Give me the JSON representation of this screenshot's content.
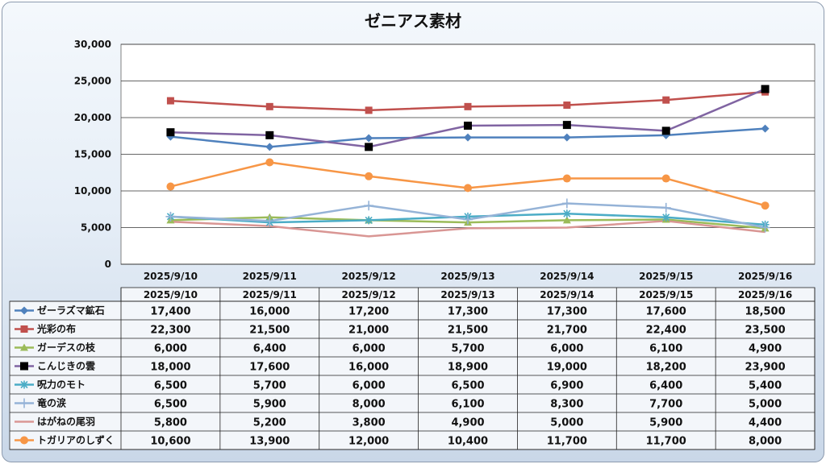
{
  "chart_data": {
    "type": "line",
    "title": "ゼニアス素材",
    "categories": [
      "2025/9/10",
      "2025/9/11",
      "2025/9/12",
      "2025/9/13",
      "2025/9/14",
      "2025/9/15",
      "2025/9/16"
    ],
    "ylim": [
      0,
      30000
    ],
    "yticks": [
      "0",
      "5,000",
      "10,000",
      "15,000",
      "20,000",
      "25,000",
      "30,000"
    ],
    "grid": true,
    "legend": "data-table",
    "series": [
      {
        "name": "ゼーラズマ鉱石",
        "color": "#4f81bd",
        "marker": "diamond",
        "values": [
          17400,
          16000,
          17200,
          17300,
          17300,
          17600,
          18500
        ],
        "labels": [
          "17,400",
          "16,000",
          "17,200",
          "17,300",
          "17,300",
          "17,600",
          "18,500"
        ]
      },
      {
        "name": "光彩の布",
        "color": "#c0504d",
        "marker": "square",
        "values": [
          22300,
          21500,
          21000,
          21500,
          21700,
          22400,
          23500
        ],
        "labels": [
          "22,300",
          "21,500",
          "21,000",
          "21,500",
          "21,700",
          "22,400",
          "23,500"
        ]
      },
      {
        "name": "ガーデスの枝",
        "color": "#9bbb59",
        "marker": "triangle",
        "values": [
          6000,
          6400,
          6000,
          5700,
          6000,
          6100,
          4900
        ],
        "labels": [
          "6,000",
          "6,400",
          "6,000",
          "5,700",
          "6,000",
          "6,100",
          "4,900"
        ]
      },
      {
        "name": "こんじきの雲",
        "color": "#8064a2",
        "marker": "blacksquare",
        "values": [
          18000,
          17600,
          16000,
          18900,
          19000,
          18200,
          23900
        ],
        "labels": [
          "18,000",
          "17,600",
          "16,000",
          "18,900",
          "19,000",
          "18,200",
          "23,900"
        ]
      },
      {
        "name": "呪力のモト",
        "color": "#4bacc6",
        "marker": "star",
        "values": [
          6500,
          5700,
          6000,
          6500,
          6900,
          6400,
          5400
        ],
        "labels": [
          "6,500",
          "5,700",
          "6,000",
          "6,500",
          "6,900",
          "6,400",
          "5,400"
        ]
      },
      {
        "name": "竜の涙",
        "color": "#95b3d7",
        "marker": "plus",
        "values": [
          6500,
          5900,
          8000,
          6100,
          8300,
          7700,
          5000
        ],
        "labels": [
          "6,500",
          "5,900",
          "8,000",
          "6,100",
          "8,300",
          "7,700",
          "5,000"
        ]
      },
      {
        "name": "はがねの尾羽",
        "color": "#d99694",
        "marker": "none",
        "values": [
          5800,
          5200,
          3800,
          4900,
          5000,
          5900,
          4400
        ],
        "labels": [
          "5,800",
          "5,200",
          "3,800",
          "4,900",
          "5,000",
          "5,900",
          "4,400"
        ]
      },
      {
        "name": "トガリアのしずく",
        "color": "#f79646",
        "marker": "circle",
        "values": [
          10600,
          13900,
          12000,
          10400,
          11700,
          11700,
          8000
        ],
        "labels": [
          "10,600",
          "13,900",
          "12,000",
          "10,400",
          "11,700",
          "11,700",
          "8,000"
        ]
      }
    ]
  }
}
